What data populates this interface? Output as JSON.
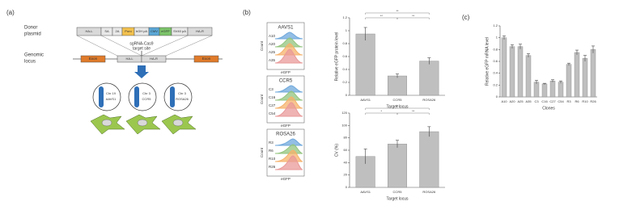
{
  "panel_labels": [
    "(a)",
    "(b)",
    "(c)"
  ],
  "diagram": {
    "donor_label": [
      "Donor",
      "plasmid"
    ],
    "plasmid": [
      {
        "label": "HA-L",
        "color": "#d9d9d9"
      },
      {
        "label": "SA",
        "color": "#e8e8e8"
      },
      {
        "label": "2A",
        "color": "#e8e8e8"
      },
      {
        "label": "Puro",
        "color": "#f2c14e"
      },
      {
        "label": "bGH pA",
        "color": "#e8e8e8"
      },
      {
        "label": "CMV",
        "color": "#5aa7d6"
      },
      {
        "label": "eGFP",
        "color": "#7cc46a"
      },
      {
        "label": "SV40 pA",
        "color": "#e8e8e8"
      },
      {
        "label": "HA-R",
        "color": "#d9d9d9"
      }
    ],
    "locus_label": [
      "Genomic",
      "locus"
    ],
    "exons": [
      "Exon",
      "Exon"
    ],
    "locus_arms": [
      "HA-L",
      "HA-R"
    ],
    "target": [
      "sgRNA-Cas9",
      "target site"
    ],
    "chromosomes": [
      {
        "chr": "Chr 19",
        "locus": "AAVS1"
      },
      {
        "chr": "Chr 3",
        "locus": "CCR5"
      },
      {
        "chr": "Chr 3",
        "locus": "ROSA26"
      }
    ]
  },
  "flow": {
    "xlabel": "eGFP",
    "ylabel": "Count",
    "colors": [
      "#6fa8dc",
      "#93c47d",
      "#f6b26b",
      "#ea9999"
    ],
    "groups": [
      {
        "title": "AAVS1",
        "clones": [
          "A10",
          "A20",
          "A25",
          "A35"
        ]
      },
      {
        "title": "CCR5",
        "clones": [
          "C3",
          "C16",
          "C27",
          "C54"
        ]
      },
      {
        "title": "ROSA26",
        "clones": [
          "R3",
          "R6",
          "R10",
          "R26"
        ]
      }
    ]
  },
  "chart_data": [
    {
      "type": "bar",
      "ylabel": "Relative eGFP protein level",
      "xlabel": "Target locus",
      "categories": [
        "AAVS1",
        "CCR5",
        "ROSA26"
      ],
      "values": [
        0.95,
        0.3,
        0.53
      ],
      "errors": [
        0.1,
        0.03,
        0.05
      ],
      "color": "#bfbfbf",
      "ylim": [
        0,
        1.2
      ],
      "yticks": [
        0,
        0.2,
        0.4,
        0.6,
        0.8,
        1,
        1.2
      ],
      "significance": [
        {
          "pair": [
            "AAVS1",
            "CCR5"
          ],
          "label": "**"
        },
        {
          "pair": [
            "CCR5",
            "ROSA26"
          ],
          "label": "**"
        },
        {
          "pair": [
            "AAVS1",
            "ROSA26"
          ],
          "label": "**"
        }
      ]
    },
    {
      "type": "bar",
      "ylabel": "CV (%)",
      "xlabel": "Target locus",
      "categories": [
        "AAVS1",
        "CCR5",
        "ROSA26"
      ],
      "values": [
        50,
        70,
        90
      ],
      "errors": [
        12,
        6,
        8
      ],
      "color": "#bfbfbf",
      "ylim": [
        0,
        120
      ],
      "yticks": [
        0,
        20,
        40,
        60,
        80,
        100,
        120
      ],
      "significance": [
        {
          "pair": [
            "AAVS1",
            "CCR5"
          ],
          "label": "*"
        },
        {
          "pair": [
            "CCR5",
            "ROSA26"
          ],
          "label": "**"
        },
        {
          "pair": [
            "AAVS1",
            "ROSA26"
          ],
          "label": "**"
        }
      ]
    },
    {
      "type": "bar",
      "ylabel": "Relative eGFP mRNA level",
      "xlabel": "Clones",
      "categories": [
        "A10",
        "A20",
        "A25",
        "A35",
        "C3",
        "C16",
        "C27",
        "C54",
        "R3",
        "R6",
        "R10",
        "R26"
      ],
      "values": [
        1,
        0.85,
        0.85,
        0.7,
        0.25,
        0.22,
        0.27,
        0.25,
        0.55,
        0.75,
        0.65,
        0.8
      ],
      "errors": [
        0.03,
        0.03,
        0.04,
        0.03,
        0.03,
        0.01,
        0.02,
        0.02,
        0.02,
        0.04,
        0.05,
        0.06
      ],
      "color": "#bfbfbf",
      "ylim": [
        0,
        1.2
      ],
      "yticks": [
        0,
        0.2,
        0.4,
        0.6,
        0.8,
        1,
        1.2
      ],
      "significance": []
    }
  ]
}
